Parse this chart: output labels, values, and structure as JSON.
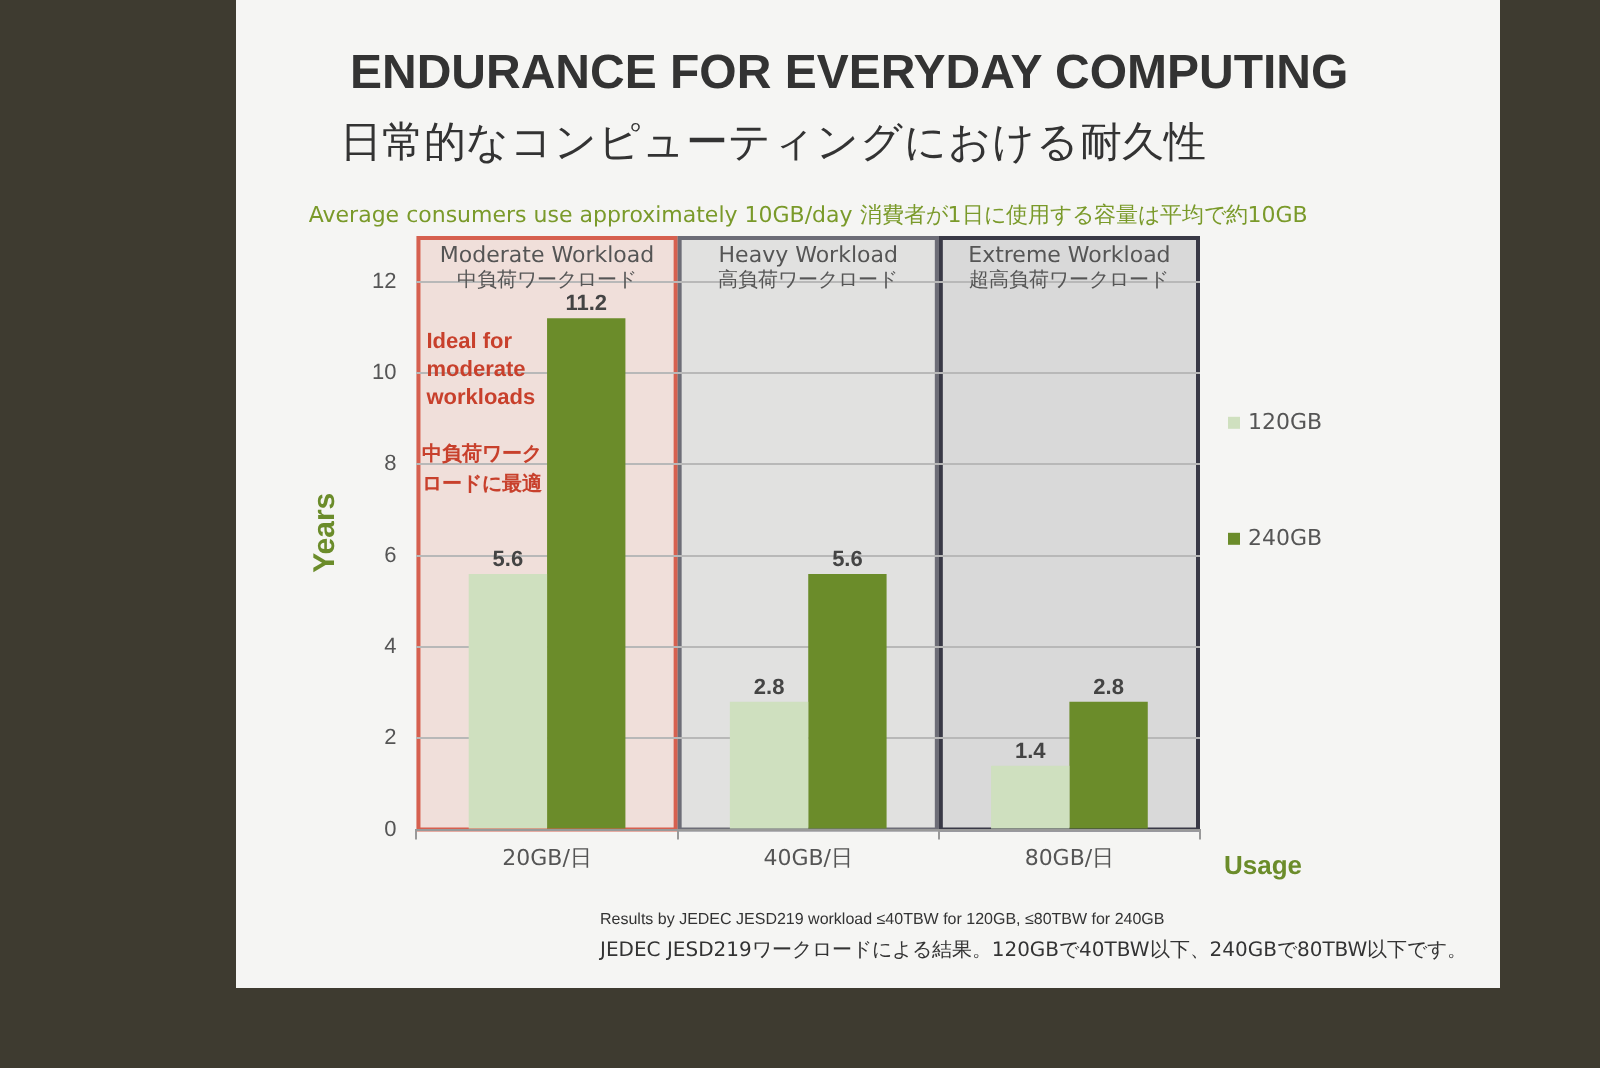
{
  "chart_data": {
    "type": "bar",
    "title": "ENDURANCE FOR EVERYDAY COMPUTING",
    "subtitle": "日常的なコンピューティングにおける耐久性",
    "xlabel": "Usage",
    "ylabel": "Years",
    "categories": [
      "20GB/日",
      "40GB/日",
      "80GB/日"
    ],
    "series": [
      {
        "name": "120GB",
        "color": "#cfe0bf",
        "values": [
          5.6,
          2.8,
          1.4
        ]
      },
      {
        "name": "240GB",
        "color": "#6b8c2a",
        "values": [
          11.2,
          5.6,
          2.8
        ]
      }
    ],
    "ylim": [
      0,
      13
    ],
    "yticks": [
      0,
      2,
      4,
      6,
      8,
      10,
      12
    ],
    "grid": "y",
    "legend": "right",
    "data_labels": true,
    "bands": [
      {
        "axis": "x",
        "from": "20GB/日",
        "to": "20GB/日",
        "label": "Moderate Workload\n中負荷ワークロード",
        "color": "#d0402c"
      },
      {
        "axis": "x",
        "from": "40GB/日",
        "to": "40GB/日",
        "label": "Heavy Workload\n高負荷ワークロード",
        "color": "#50505c"
      },
      {
        "axis": "x",
        "from": "80GB/日",
        "to": "80GB/日",
        "label": "Extreme Workload\n超高負荷ワークロード",
        "color": "#101020"
      }
    ],
    "annotations": [
      "Average consumers use approximately 10GB/day 消費者が1日に使用する容量は平均で約10GB",
      "Ideal for moderate workloads",
      "中負荷ワークロードに最適",
      "Results by JEDEC JESD219 workload ≤40TBW for 120GB, ≤80TBW for 240GB",
      "JEDEC JESD219ワークロードによる結果。120GBで40TBW以下、240GBで80TBW以下です。"
    ]
  }
}
